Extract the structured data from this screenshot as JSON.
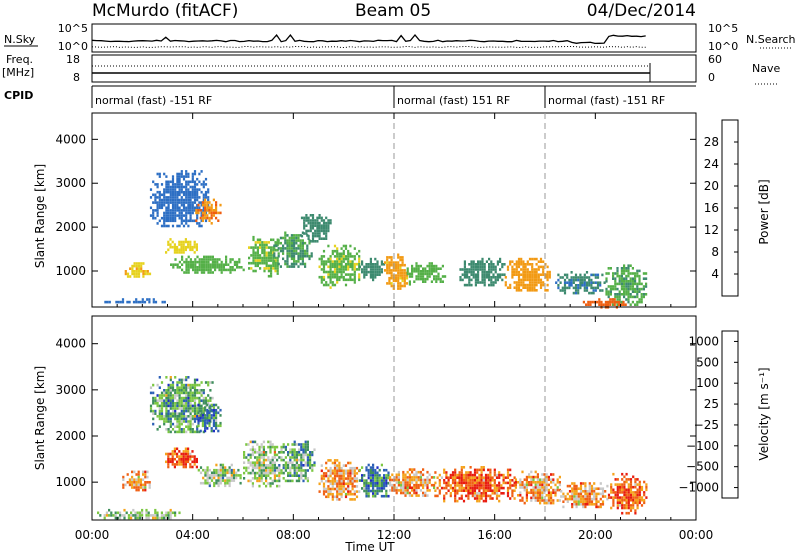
{
  "header": {
    "station": "McMurdo (fitACF)",
    "beam": "Beam 05",
    "date": "04/Dec/2014"
  },
  "noise_panel": {
    "left_label": "N.Sky",
    "left_ticks": [
      "10^5",
      "10^0"
    ],
    "right_ticks": [
      "10^5",
      "10^0"
    ],
    "right_label": "N.Search"
  },
  "freq_panel": {
    "left_label_1": "Freq.",
    "left_label_2": "[MHz]",
    "left_ticks": [
      "18",
      "8"
    ],
    "right_ticks": [
      "60",
      "0"
    ],
    "right_label": "Nave"
  },
  "cpid": {
    "label": "CPID",
    "segments": [
      {
        "text": "normal (fast) -151 RF",
        "start_hour": 0
      },
      {
        "text": "normal (fast) 151 RF",
        "start_hour": 12
      },
      {
        "text": "normal (fast) -151 RF",
        "start_hour": 18
      }
    ]
  },
  "colors": {
    "power": [
      "#1f1fd8",
      "#2d6fc4",
      "#3d8a6f",
      "#55b048",
      "#e6d21e",
      "#f29a14",
      "#ef5e10",
      "#e51d10"
    ],
    "velocity": [
      "#e81c10",
      "#f06014",
      "#f5a31c",
      "#c8c8c8",
      "#7cc742",
      "#3f8f5c",
      "#2c5fb6",
      "#1f2fc4"
    ]
  },
  "chart_data": [
    {
      "type": "heatmap",
      "title": "",
      "xlabel": "Time UT",
      "ylabel": "Slant Range [km]",
      "xticks": [
        "00:00",
        "04:00",
        "08:00",
        "12:00",
        "16:00",
        "20:00",
        "00:00"
      ],
      "yticks": [
        "1000",
        "2000",
        "3000",
        "4000"
      ],
      "xlim": [
        0,
        24
      ],
      "ylim": [
        180,
        4600
      ],
      "colorbar_label": "Power [dB]",
      "colorbar_ticks": [
        "4",
        "8",
        "12",
        "16",
        "20",
        "24",
        "28"
      ],
      "colorbar_range": [
        0,
        30
      ],
      "regions": [
        {
          "t0": 0.4,
          "t1": 3.2,
          "r0": 300,
          "r1": 380,
          "value": 6
        },
        {
          "t0": 1.3,
          "t1": 2.3,
          "r0": 850,
          "r1": 1200,
          "value": 18
        },
        {
          "t0": 2.3,
          "t1": 4.6,
          "r0": 2000,
          "r1": 3300,
          "value": 6
        },
        {
          "t0": 4.1,
          "t1": 5.1,
          "r0": 2100,
          "r1": 2650,
          "value": 22
        },
        {
          "t0": 2.9,
          "t1": 4.2,
          "r0": 1400,
          "r1": 1750,
          "value": 17
        },
        {
          "t0": 3.1,
          "t1": 6.0,
          "r0": 950,
          "r1": 1350,
          "value": 13
        },
        {
          "t0": 6.2,
          "t1": 7.4,
          "r0": 900,
          "r1": 1800,
          "value": 14
        },
        {
          "t0": 7.2,
          "t1": 8.7,
          "r0": 1100,
          "r1": 1900,
          "value": 11
        },
        {
          "t0": 8.3,
          "t1": 9.5,
          "r0": 1700,
          "r1": 2300,
          "value": 9
        },
        {
          "t0": 9.0,
          "t1": 10.6,
          "r0": 650,
          "r1": 1600,
          "value": 14
        },
        {
          "t0": 10.6,
          "t1": 11.6,
          "r0": 800,
          "r1": 1300,
          "value": 9
        },
        {
          "t0": 11.6,
          "t1": 12.5,
          "r0": 600,
          "r1": 1400,
          "value": 20
        },
        {
          "t0": 12.5,
          "t1": 14.0,
          "r0": 700,
          "r1": 1200,
          "value": 13
        },
        {
          "t0": 14.6,
          "t1": 16.4,
          "r0": 650,
          "r1": 1300,
          "value": 9
        },
        {
          "t0": 16.4,
          "t1": 18.2,
          "r0": 550,
          "r1": 1300,
          "value": 21
        },
        {
          "t0": 18.4,
          "t1": 20.4,
          "r0": 500,
          "r1": 1000,
          "value": 8
        },
        {
          "t0": 20.4,
          "t1": 22.0,
          "r0": 250,
          "r1": 1150,
          "value": 12
        },
        {
          "t0": 19.5,
          "t1": 21.2,
          "r0": 200,
          "r1": 380,
          "value": 24
        }
      ]
    },
    {
      "type": "heatmap",
      "title": "",
      "xlabel": "Time UT",
      "ylabel": "Slant Range [km]",
      "xticks": [
        "00:00",
        "04:00",
        "08:00",
        "12:00",
        "16:00",
        "20:00",
        "00:00"
      ],
      "yticks": [
        "1000",
        "2000",
        "3000",
        "4000"
      ],
      "xlim": [
        0,
        24
      ],
      "ylim": [
        180,
        4600
      ],
      "colorbar_label": "Velocity [m s⁻¹]",
      "colorbar_ticks": [
        "1000",
        "500",
        "100",
        "25",
        "−25",
        "−100",
        "−500",
        "−1000"
      ],
      "regions": [
        {
          "t0": 2.3,
          "t1": 4.8,
          "r0": 2100,
          "r1": 3300,
          "value": 5
        },
        {
          "t0": 4.1,
          "t1": 5.1,
          "r0": 2100,
          "r1": 2700,
          "value": 6
        },
        {
          "t0": 1.2,
          "t1": 2.3,
          "r0": 800,
          "r1": 1250,
          "value": 2
        },
        {
          "t0": 2.9,
          "t1": 4.2,
          "r0": 1300,
          "r1": 1750,
          "value": 1
        },
        {
          "t0": 4.2,
          "t1": 5.9,
          "r0": 900,
          "r1": 1400,
          "value": 4
        },
        {
          "t0": 6.0,
          "t1": 7.6,
          "r0": 900,
          "r1": 1900,
          "value": 4
        },
        {
          "t0": 7.4,
          "t1": 8.8,
          "r0": 1000,
          "r1": 1900,
          "value": 5
        },
        {
          "t0": 9.0,
          "t1": 10.6,
          "r0": 650,
          "r1": 1500,
          "value": 2
        },
        {
          "t0": 10.6,
          "t1": 11.8,
          "r0": 700,
          "r1": 1400,
          "value": 6
        },
        {
          "t0": 11.8,
          "t1": 13.6,
          "r0": 700,
          "r1": 1300,
          "value": 2
        },
        {
          "t0": 13.6,
          "t1": 16.8,
          "r0": 600,
          "r1": 1350,
          "value": 1
        },
        {
          "t0": 16.8,
          "t1": 18.6,
          "r0": 550,
          "r1": 1250,
          "value": 2
        },
        {
          "t0": 18.6,
          "t1": 20.5,
          "r0": 450,
          "r1": 1000,
          "value": 2
        },
        {
          "t0": 20.5,
          "t1": 22.0,
          "r0": 350,
          "r1": 1200,
          "value": 1
        },
        {
          "t0": 0.2,
          "t1": 3.5,
          "r0": 200,
          "r1": 420,
          "value": 4
        }
      ]
    }
  ]
}
